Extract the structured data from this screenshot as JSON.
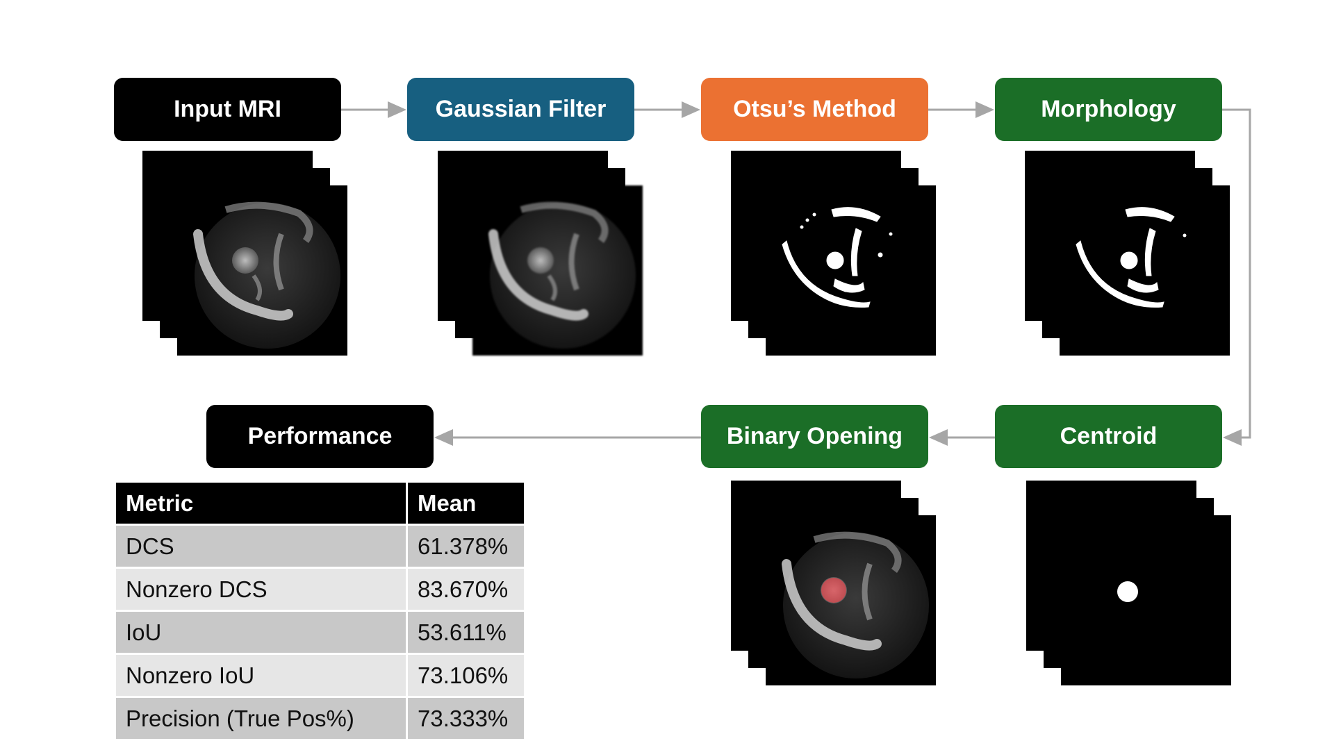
{
  "colors": {
    "black": "#000000",
    "blue": "#175f80",
    "orange": "#eb7132",
    "green": "#1b6e27",
    "arrow": "#a6a6a6",
    "overlay": "#e0484f"
  },
  "steps": {
    "input": "Input MRI",
    "gaussian": "Gaussian Filter",
    "otsu": "Otsu’s Method",
    "morphology": "Morphology",
    "centroid": "Centroid",
    "binary_opening": "Binary Opening",
    "performance": "Performance"
  },
  "table": {
    "headers": [
      "Metric",
      "Mean"
    ],
    "rows": [
      [
        "DCS",
        "61.378%"
      ],
      [
        "Nonzero DCS",
        "83.670%"
      ],
      [
        "IoU",
        "53.611%"
      ],
      [
        "Nonzero IoU",
        "73.106%"
      ],
      [
        "Precision (True Pos%)",
        "73.333%"
      ]
    ]
  }
}
